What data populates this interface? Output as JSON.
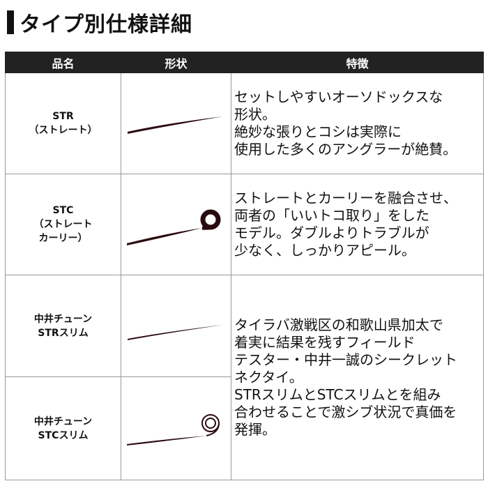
{
  "title": "タイプ別仕様詳細",
  "headers": [
    "品名",
    "形状",
    "特徴"
  ],
  "rows": [
    {
      "name": [
        "STR",
        "（ストレート）"
      ],
      "shape": "straight-lure",
      "feature": [
        "セットしやすいオーソドックスな",
        "形状。",
        "絶妙な張りとコシは実際に",
        "使用した多くのアングラーが絶賛。"
      ]
    },
    {
      "name": [
        "STC",
        "（ストレート",
        "カーリー）"
      ],
      "shape": "curly-lure",
      "feature": [
        "ストレートとカーリーを融合させ、",
        "両者の「いいトコ取り」をした",
        "モデル。ダブルよりトラブルが",
        "少なく、しっかりアピール。"
      ]
    },
    {
      "name": [
        "中井チューン",
        "STRスリム"
      ],
      "shape": "straight-slim-lure"
    },
    {
      "name": [
        "中井チューン",
        "STCスリム"
      ],
      "shape": "curly-slim-lure"
    }
  ],
  "shared_feature": [
    "タイラバ激戦区の和歌山県加太で",
    "着実に結果を残すフィールド",
    "テスター・中井一誠のシークレット",
    "ネクタイ。",
    "STRスリムとSTCスリムとを組み",
    "合わせることで激シブ状況で真価を",
    "発揮。"
  ],
  "colors": {
    "header_bg": "#222222",
    "lure": "#2a0a0e"
  }
}
